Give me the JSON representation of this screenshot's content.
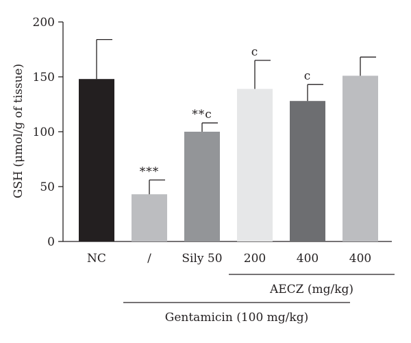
{
  "chart_data": {
    "type": "bar",
    "title": "",
    "ylabel": "GSH (μmol/g of tissue)",
    "xlabel": "",
    "ylim": [
      0,
      200
    ],
    "yticks": [
      0,
      50,
      100,
      150,
      200
    ],
    "categories": [
      "NC",
      "/",
      "Sily 50",
      "200",
      "400",
      "400"
    ],
    "values": [
      148,
      43,
      100,
      139,
      128,
      151
    ],
    "error_upper": [
      36,
      13,
      8,
      26,
      15,
      17
    ],
    "annotations": [
      "",
      "***",
      "**c",
      "c",
      "c",
      ""
    ],
    "colors": [
      "#231f20",
      "#bcbdc0",
      "#939598",
      "#e6e7e8",
      "#6d6e71",
      "#bcbdc0"
    ],
    "groups": [
      {
        "label": "AECZ (mg/kg)",
        "from": 3,
        "to": 5
      },
      {
        "label": "Gentamicin (100 mg/kg)",
        "from": 1,
        "to": 5
      }
    ],
    "grid": false,
    "legend": "none"
  }
}
